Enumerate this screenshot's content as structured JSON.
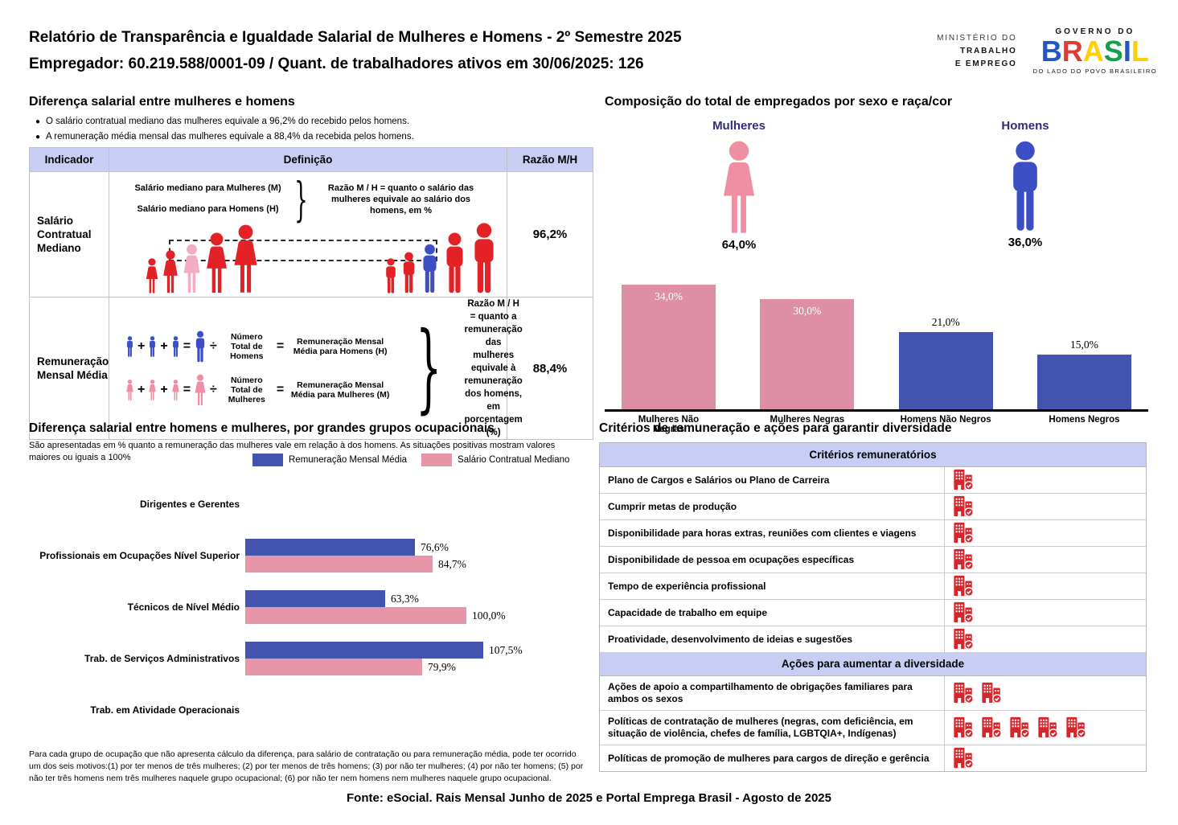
{
  "header": {
    "title": "Relatório de Transparência e Igualdade Salarial de Mulheres e Homens - 2º Semestre 2025",
    "subtitle": "Empregador: 60.219.588/0001-09 / Quant. de trabalhadores ativos em 30/06/2025: 126"
  },
  "logos": {
    "ministry_lines": [
      "MINISTÉRIO DO",
      "TRABALHO",
      "E EMPREGO"
    ],
    "gov_top": "GOVERNO DO",
    "gov_name_letters": [
      "B",
      "R",
      "A",
      "S",
      "I",
      "L"
    ],
    "gov_letter_colors": [
      "#2456c8",
      "#e13a32",
      "#ffcf00",
      "#12a14b",
      "#2456c8",
      "#ffcf00"
    ],
    "gov_bottom": "DO LADO DO POVO BRASILEIRO"
  },
  "salary_gap": {
    "title": "Diferença salarial entre mulheres e homens",
    "bullets": [
      "O salário contratual mediano das mulheres equivale a 96,2% do recebido pelos homens.",
      "A remuneração média mensal das mulheres equivale a 88,4% da recebida pelos homens."
    ],
    "operators": {
      "plus": "+",
      "equals": "=",
      "divide": "÷",
      "brace": "}"
    },
    "table": {
      "headers": [
        "Indicador",
        "Definição",
        "Razão M/H"
      ],
      "rows": [
        {
          "indicator": "Salário Contratual Mediano",
          "def_line1": "Salário mediano para Mulheres (M)",
          "def_line2": "Salário mediano para Homens (H)",
          "def_note": "Razão M / H = quanto o salário das mulheres equivale ao salário dos homens, em %",
          "ratio": "96,2%"
        },
        {
          "indicator": "Remuneração Mensal Média",
          "men_divisor": "Número Total de Homens",
          "men_result": "Remuneração Mensal Média para Homens (H)",
          "women_divisor": "Número Total de Mulheres",
          "women_result": "Remuneração Mensal Média para Mulheres (M)",
          "def_note": "Razão M / H = quanto a remuneração das mulheres equivale à remuneração dos homens, em porcentagem (%)",
          "ratio": "88,4%"
        }
      ]
    }
  },
  "composition": {
    "title": "Composição do total de empregados por sexo e raça/cor",
    "women_label": "Mulheres",
    "women_pct": "64,0%",
    "men_label": "Homens",
    "men_pct": "36,0%"
  },
  "chart_data": [
    {
      "type": "bar",
      "title": "Composição do total de empregados por sexo e raça/cor",
      "categories": [
        "Mulheres Não Negras",
        "Mulheres Negras",
        "Homens Não Negros",
        "Homens Negros"
      ],
      "values": [
        34.0,
        30.0,
        21.0,
        15.0
      ],
      "labels": [
        "34,0%",
        "30,0%",
        "21,0%",
        "15,0%"
      ],
      "colors": [
        "#df8fa5",
        "#df8fa5",
        "#4254ae",
        "#4254ae"
      ],
      "label_inside": [
        true,
        true,
        false,
        false
      ],
      "ylim": [
        0,
        34.5
      ],
      "grid": false,
      "summary": {
        "women_total_pct": 64.0,
        "men_total_pct": 36.0
      }
    },
    {
      "type": "bar-horizontal",
      "title": "Diferença salarial entre homens e mulheres, por grandes grupos ocupacionais",
      "categories": [
        "Dirigentes e Gerentes",
        "Profissionais em Ocupações Nível Superior",
        "Técnicos de Nível Médio",
        "Trab. de Serviços Administrativos",
        "Trab. em Atividade Operacionais"
      ],
      "series": [
        {
          "name": "Remuneração Mensal Média",
          "color": "#4254ae",
          "values": [
            null,
            76.6,
            63.3,
            107.5,
            null
          ],
          "labels": [
            null,
            "76,6%",
            "63,3%",
            "107,5%",
            null
          ]
        },
        {
          "name": "Salário Contratual Mediano",
          "color": "#e795a9",
          "values": [
            null,
            84.7,
            100.0,
            79.9,
            null
          ],
          "labels": [
            null,
            "84,7%",
            "100,0%",
            "79,9%",
            null
          ]
        }
      ],
      "xmax": 115,
      "grid": false,
      "legend_position": "top"
    }
  ],
  "occupational": {
    "title": "Diferença salarial entre homens e mulheres, por grandes grupos ocupacionais",
    "subtitle": "São apresentadas em % quanto a remuneração das mulheres vale em relação à dos homens. As situações positivas mostram valores maiores ou iguais a 100%",
    "footnote": "Para cada grupo de ocupação que não apresenta cálculo da diferença, para salário de contratação ou para remuneração média, pode ter ocorrido um dos seis motivos:(1) por ter menos de três mulheres; (2) por ter menos de três homens; (3) por não ter mulheres; (4) por não ter homens; (5) por não ter três homens nem três mulheres naquele grupo ocupacional; (6) por não ter nem homens nem mulheres naquele grupo ocupacional."
  },
  "criteria": {
    "title": "Critérios de remuneração e ações para garantir diversidade",
    "sections": [
      {
        "header": "Critérios remuneratórios",
        "rows": [
          {
            "label": "Plano de Cargos e Salários ou Plano de Carreira",
            "icons": 1
          },
          {
            "label": "Cumprir metas de produção",
            "icons": 1
          },
          {
            "label": "Disponibilidade para horas extras, reuniões com clientes e viagens",
            "icons": 1
          },
          {
            "label": "Disponibilidade de pessoa em ocupações específicas",
            "icons": 1
          },
          {
            "label": "Tempo de experiência profissional",
            "icons": 1
          },
          {
            "label": "Capacidade de trabalho em equipe",
            "icons": 1
          },
          {
            "label": "Proatividade, desenvolvimento de ideias e sugestões",
            "icons": 1
          }
        ]
      },
      {
        "header": "Ações para aumentar a diversidade",
        "rows": [
          {
            "label": "Ações de apoio a compartilhamento de obrigações familiares para ambos os sexos",
            "icons": 2
          },
          {
            "label": "Políticas de contratação de mulheres (negras, com deficiência, em situação de violência, chefes de família, LGBTQIA+, Indígenas)",
            "icons": 5
          },
          {
            "label": "Políticas de promoção de mulheres para cargos de direção e gerência",
            "icons": 1
          }
        ]
      }
    ]
  },
  "footer": "Fonte: eSocial. Rais Mensal Junho de 2025 e Portal Emprega Brasil - Agosto de 2025",
  "colors": {
    "header_lavender": "#c7cdf3",
    "female_pink_bar": "#df8fa5",
    "female_pink_icon": "#ee8fa4",
    "female_pink_light": "#f4abc4",
    "male_blue_bar": "#4254ae",
    "male_blue_icon": "#3c4ec4",
    "figure_red": "#e32227",
    "navy_label": "#312b7b",
    "company_icon_red": "#d6262c"
  }
}
